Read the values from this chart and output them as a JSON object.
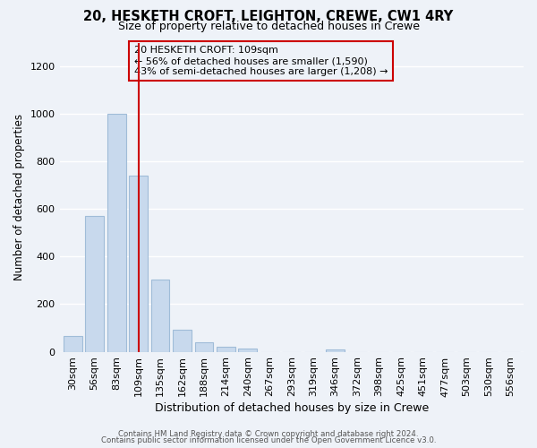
{
  "title": "20, HESKETH CROFT, LEIGHTON, CREWE, CW1 4RY",
  "subtitle": "Size of property relative to detached houses in Crewe",
  "xlabel": "Distribution of detached houses by size in Crewe",
  "ylabel": "Number of detached properties",
  "bar_labels": [
    "30sqm",
    "56sqm",
    "83sqm",
    "109sqm",
    "135sqm",
    "162sqm",
    "188sqm",
    "214sqm",
    "240sqm",
    "267sqm",
    "293sqm",
    "319sqm",
    "346sqm",
    "372sqm",
    "398sqm",
    "425sqm",
    "451sqm",
    "477sqm",
    "503sqm",
    "530sqm",
    "556sqm"
  ],
  "bar_values": [
    65,
    570,
    1000,
    740,
    305,
    93,
    40,
    20,
    15,
    0,
    0,
    0,
    10,
    0,
    0,
    0,
    0,
    0,
    0,
    0,
    0
  ],
  "bar_color": "#c8d9ed",
  "bar_edge_color": "#a0bcd8",
  "highlight_index": 3,
  "highlight_line_color": "#cc0000",
  "annotation_line1": "20 HESKETH CROFT: 109sqm",
  "annotation_line2": "← 56% of detached houses are smaller (1,590)",
  "annotation_line3": "43% of semi-detached houses are larger (1,208) →",
  "annotation_box_edge_color": "#cc0000",
  "ylim": [
    0,
    1300
  ],
  "yticks": [
    0,
    200,
    400,
    600,
    800,
    1000,
    1200
  ],
  "footer1": "Contains HM Land Registry data © Crown copyright and database right 2024.",
  "footer2": "Contains public sector information licensed under the Open Government Licence v3.0.",
  "background_color": "#eef2f8",
  "grid_color": "#ffffff"
}
